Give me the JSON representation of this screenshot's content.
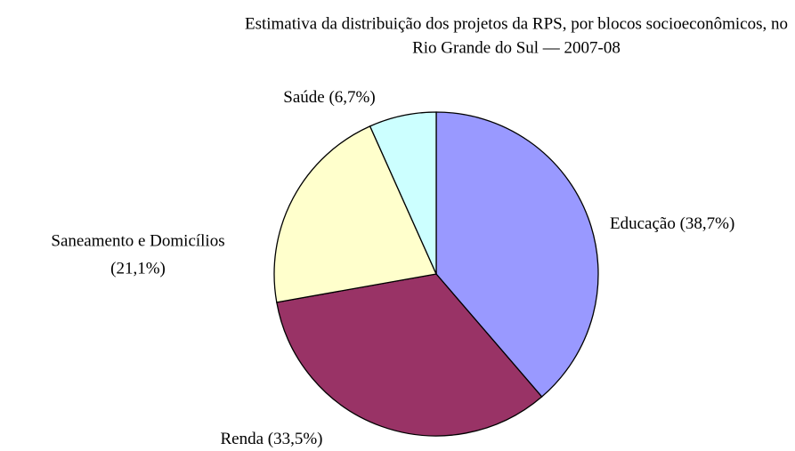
{
  "chart_data": {
    "type": "pie",
    "title": [
      "Estimativa da distribuição dos projetos da RPS, por blocos socioeconômicos, no",
      "Rio Grande do Sul — 2007-08"
    ],
    "categories": [
      "Educação",
      "Renda",
      "Saneamento e Domicílios",
      "Saúde"
    ],
    "values": [
      38.7,
      33.5,
      21.1,
      6.7
    ],
    "value_labels": [
      "(38,7%)",
      "(33,5%)",
      "(21,1%)",
      "(6,7%)"
    ],
    "colors": [
      "#9999ff",
      "#993366",
      "#ffffcc",
      "#ccffff"
    ]
  }
}
